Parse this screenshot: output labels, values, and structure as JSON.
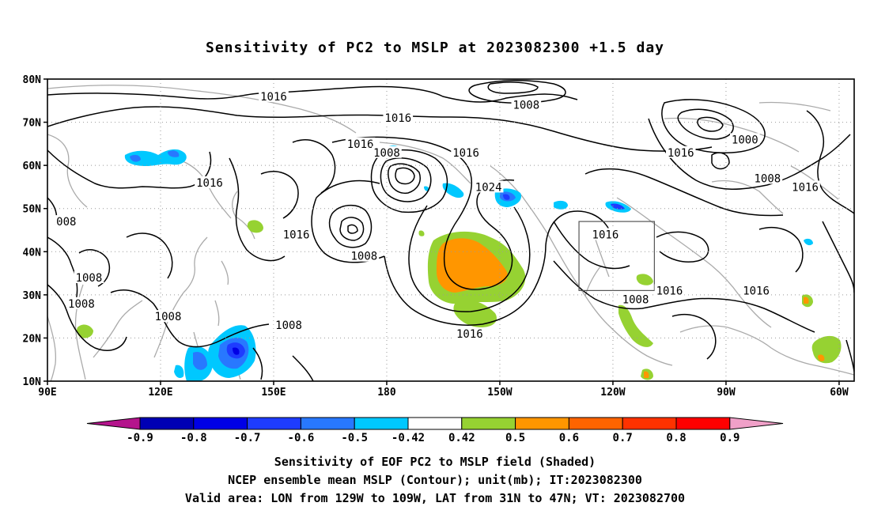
{
  "title": "Sensitivity of PC2 to MSLP at 2023082300 +1.5 day",
  "map": {
    "lat_ticks": [
      "80N",
      "70N",
      "60N",
      "50N",
      "40N",
      "30N",
      "20N",
      "10N"
    ],
    "lon_ticks": [
      "90E",
      "120E",
      "150E",
      "180",
      "150W",
      "120W",
      "90W",
      "60W"
    ],
    "lon_range": [
      90,
      304
    ],
    "lat_range": [
      10,
      80
    ],
    "valid_box": {
      "lon_min": 231,
      "lon_max": 251,
      "lat_min": 31,
      "lat_max": 47
    },
    "contour_labels": [
      {
        "text": "1016",
        "lon": 150,
        "lat": 76
      },
      {
        "text": "1008",
        "lon": 217,
        "lat": 74
      },
      {
        "text": "1016",
        "lon": 183,
        "lat": 71
      },
      {
        "text": "1016",
        "lon": 173,
        "lat": 65
      },
      {
        "text": "1008",
        "lon": 180,
        "lat": 63
      },
      {
        "text": "1016",
        "lon": 201,
        "lat": 63
      },
      {
        "text": "1000",
        "lon": 275,
        "lat": 66
      },
      {
        "text": "1016",
        "lon": 258,
        "lat": 63
      },
      {
        "text": "1024",
        "lon": 207,
        "lat": 55
      },
      {
        "text": "1016",
        "lon": 133,
        "lat": 56
      },
      {
        "text": "1008",
        "lon": 281,
        "lat": 57
      },
      {
        "text": "1016",
        "lon": 291,
        "lat": 55
      },
      {
        "text": "008",
        "lon": 95,
        "lat": 47
      },
      {
        "text": "1016",
        "lon": 156,
        "lat": 44
      },
      {
        "text": "1016",
        "lon": 238,
        "lat": 44
      },
      {
        "text": "1008",
        "lon": 174,
        "lat": 39
      },
      {
        "text": "1008",
        "lon": 101,
        "lat": 34
      },
      {
        "text": "1008",
        "lon": 99,
        "lat": 28
      },
      {
        "text": "1008",
        "lon": 246,
        "lat": 29
      },
      {
        "text": "1016",
        "lon": 255,
        "lat": 31
      },
      {
        "text": "1016",
        "lon": 278,
        "lat": 31
      },
      {
        "text": "1008",
        "lon": 122,
        "lat": 25
      },
      {
        "text": "1008",
        "lon": 154,
        "lat": 23
      },
      {
        "text": "1016",
        "lon": 202,
        "lat": 21
      }
    ]
  },
  "colorbar": {
    "labels": [
      "-0.9",
      "-0.8",
      "-0.7",
      "-0.6",
      "-0.5",
      "-0.42",
      "0.42",
      "0.5",
      "0.6",
      "0.7",
      "0.8",
      "0.9"
    ],
    "colors": [
      "#0000b4",
      "#0000e6",
      "#1e3cff",
      "#2878ff",
      "#00c8ff",
      "#ffffff",
      "#96d232",
      "#ff9600",
      "#ff6400",
      "#ff3200",
      "#ff0000"
    ],
    "low_end_color": "#b4148c",
    "high_end_color": "#f0a0c8"
  },
  "captions": [
    "Sensitivity of EOF PC2 to MSLP field (Shaded)",
    "NCEP ensemble mean MSLP (Contour); unit(mb); IT:2023082300",
    "Valid area: LON from 129W to 109W, LAT from 31N to 47N; VT: 2023082700"
  ]
}
